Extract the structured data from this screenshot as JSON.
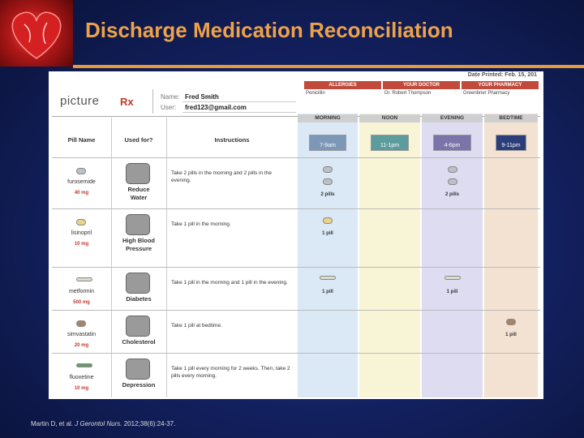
{
  "title": "Discharge Medication Reconciliation",
  "citation": {
    "authors": "Martin D, et al.",
    "journal": "J Gerontol Nurs.",
    "details": "2012;38(6):24-37."
  },
  "form": {
    "date_printed": "Date Printed: Feb. 15, 201",
    "logo": {
      "text": "picture",
      "mark": "Rx"
    },
    "name_label": "Name:",
    "name": "Fred Smith",
    "user_label": "User:",
    "user": "fred123@gmail.com",
    "info": [
      {
        "header": "ALLERGIES",
        "value": "Penicillin"
      },
      {
        "header": "YOUR DOCTOR",
        "value": "Dr. Robert Thompson"
      },
      {
        "header": "YOUR PHARMACY",
        "value": "Greenbrier Pharmacy"
      }
    ],
    "columns": [
      "Pill Name",
      "Used for?",
      "Instructions"
    ],
    "times": [
      {
        "label": "MORNING",
        "hours": "7-9am"
      },
      {
        "label": "NOON",
        "hours": "11-1pm"
      },
      {
        "label": "EVENING",
        "hours": "4-6pm"
      },
      {
        "label": "BEDTIME",
        "hours": "9-11pm"
      }
    ],
    "medications": [
      {
        "name": "furosemide",
        "dose": "40 mg",
        "used_for": "Reduce Water",
        "instructions": "Take 2 pills in the morning and 2 pills in the evening.",
        "doses": [
          "2 pills",
          null,
          "2 pills",
          null
        ]
      },
      {
        "name": "lisinopril",
        "dose": "10 mg",
        "used_for": "High Blood Pressure",
        "instructions": "Take 1 pill in the morning.",
        "doses": [
          "1 pill",
          null,
          null,
          null
        ]
      },
      {
        "name": "metformin",
        "dose": "500 mg",
        "used_for": "Diabetes",
        "instructions": "Take 1 pill in the morning and 1 pill in the evening.",
        "doses": [
          "1 pill",
          null,
          "1 pill",
          null
        ]
      },
      {
        "name": "simvastatin",
        "dose": "20 mg",
        "used_for": "Cholesterol",
        "instructions": "Take 1 pill at bedtime.",
        "doses": [
          null,
          null,
          null,
          "1 pill"
        ]
      },
      {
        "name": "fluoxetine",
        "dose": "10 mg",
        "used_for": "Depression",
        "instructions": "Take 1 pill every morning for 2 weeks. Then, take 2 pills every morning.",
        "doses": [
          null,
          null,
          null,
          null
        ]
      }
    ]
  }
}
